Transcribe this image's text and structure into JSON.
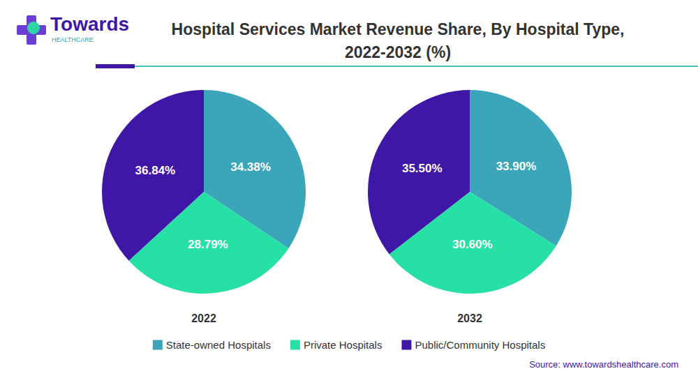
{
  "logo": {
    "name": "Towards",
    "tagline": "HEALTHCARE"
  },
  "chart_data": {
    "type": "pie",
    "title": "Hospital Services Market Revenue Share, By Hospital Type,\n2022-2032 (%)",
    "categories": [
      "State-owned Hospitals",
      "Private Hospitals",
      "Public/Community Hospitals"
    ],
    "colors": [
      "#3ba5ba",
      "#26e0a6",
      "#3f17a6"
    ],
    "series": [
      {
        "name": "2022",
        "values": [
          34.38,
          28.79,
          36.84
        ],
        "value_labels": [
          "34.38%",
          "28.79%",
          "36.84%"
        ]
      },
      {
        "name": "2032",
        "values": [
          33.9,
          30.6,
          35.5
        ],
        "value_labels": [
          "33.90%",
          "30.60%",
          "35.50%"
        ]
      }
    ],
    "data_labels": true,
    "legend": "bottom",
    "annotations": [
      "Source: www.towardshealthcare.com"
    ]
  }
}
